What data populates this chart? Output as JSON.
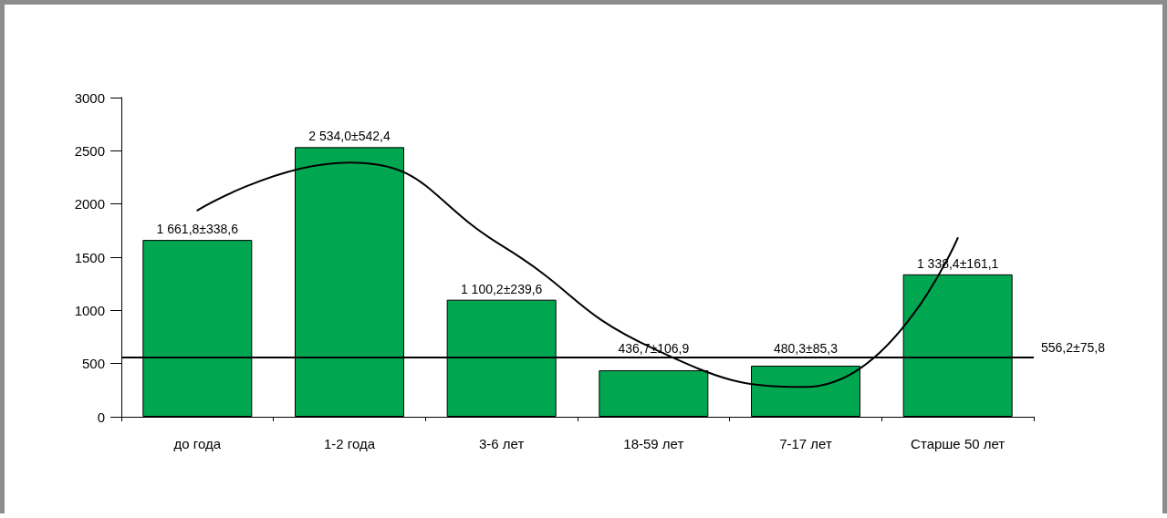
{
  "chart_data": {
    "type": "bar",
    "categories": [
      "до года",
      "1-2 года",
      "3-6 лет",
      "18-59 лет",
      "7-17 лет",
      "Старше 50 лет"
    ],
    "series": [
      {
        "color": "#00a650",
        "values": [
          1661.8,
          2534.0,
          1100.2,
          436.7,
          480.3,
          1338.4
        ],
        "value_labels": [
          "1 661,8±338,6",
          "2 534,0±542,4",
          "1 100,2±239,6",
          "436,7±106,9",
          "480,3±85,3",
          "1 338,4±161,1"
        ]
      },
      {
        "type": "line",
        "color": "#000000",
        "values": [
          1940,
          2390,
          1610,
          640,
          280,
          1680
        ]
      }
    ],
    "ylim": [
      0,
      3000
    ],
    "yticks": [
      0,
      500,
      1000,
      1500,
      2000,
      2500,
      3000
    ],
    "ref_lines": [
      {
        "axis": "y",
        "value": 556.2,
        "label": "556,2±75,8",
        "color": "#000000"
      }
    ],
    "grid": false,
    "marker": "none",
    "line_style": "solid"
  }
}
